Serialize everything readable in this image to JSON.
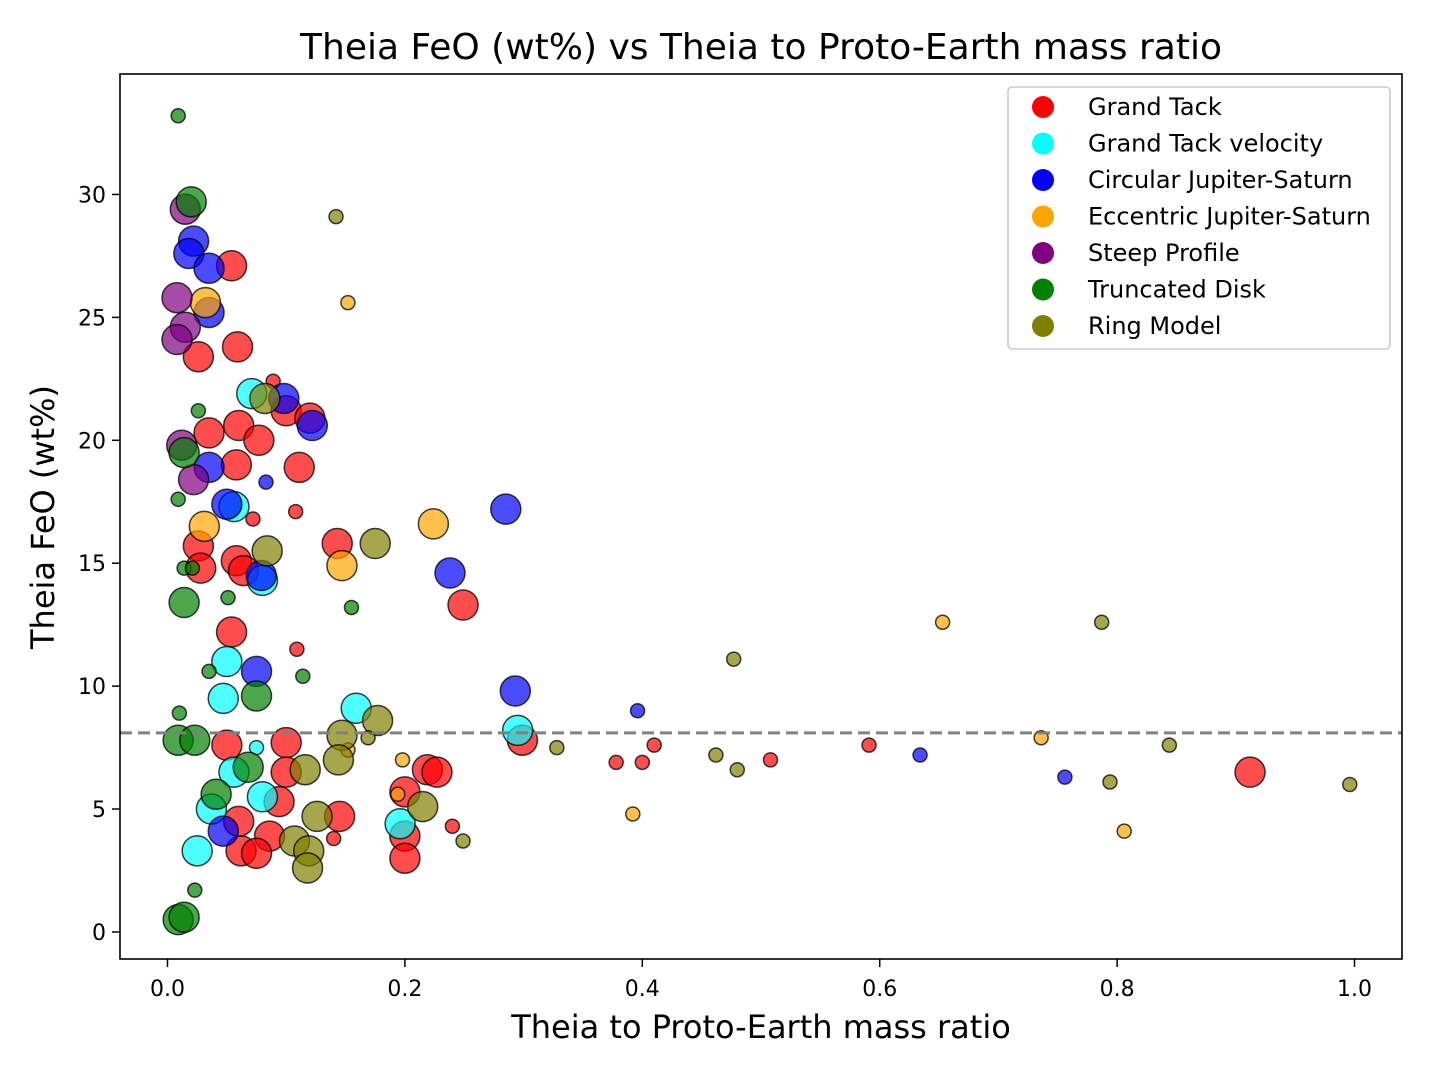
{
  "chart_data": {
    "type": "scatter",
    "title": "Theia FeO (wt%) vs Theia to Proto-Earth mass ratio",
    "xlabel": "Theia to Proto-Earth mass ratio",
    "ylabel": "Theia FeO (wt%)",
    "xlim": [
      -0.04,
      1.04
    ],
    "ylim": [
      -1.1,
      34.9
    ],
    "xticks": [
      0.0,
      0.2,
      0.4,
      0.6,
      0.8,
      1.0
    ],
    "xtick_labels": [
      "0.0",
      "0.2",
      "0.4",
      "0.6",
      "0.8",
      "1.0"
    ],
    "yticks": [
      0,
      5,
      10,
      15,
      20,
      25,
      30
    ],
    "ytick_labels": [
      "0",
      "5",
      "10",
      "15",
      "20",
      "25",
      "30"
    ],
    "reference_line": {
      "y": 8.1,
      "style": "dashed",
      "color": "#808080"
    },
    "legend_position": "top-right",
    "grid": false,
    "point_format": "[x, y, marker_size]",
    "series": [
      {
        "name": "Grand Tack",
        "color": "#ff0000",
        "points": [
          [
            0.054,
            27.1,
            225
          ],
          [
            0.059,
            23.8,
            225
          ],
          [
            0.026,
            23.4,
            225
          ],
          [
            0.035,
            20.3,
            225
          ],
          [
            0.06,
            20.6,
            225
          ],
          [
            0.077,
            20.0,
            225
          ],
          [
            0.1,
            21.2,
            225
          ],
          [
            0.111,
            18.9,
            225
          ],
          [
            0.058,
            19.0,
            225
          ],
          [
            0.026,
            15.7,
            225
          ],
          [
            0.028,
            14.8,
            225
          ],
          [
            0.058,
            15.1,
            225
          ],
          [
            0.064,
            14.7,
            225
          ],
          [
            0.054,
            12.2,
            225
          ],
          [
            0.143,
            15.8,
            225
          ],
          [
            0.249,
            13.3,
            225
          ],
          [
            0.12,
            20.9,
            225
          ],
          [
            0.072,
            16.8,
            49
          ],
          [
            0.108,
            17.1,
            49
          ],
          [
            0.109,
            11.5,
            49
          ],
          [
            0.05,
            7.6,
            225
          ],
          [
            0.1,
            7.7,
            225
          ],
          [
            0.1,
            6.5,
            225
          ],
          [
            0.094,
            5.3,
            225
          ],
          [
            0.086,
            3.9,
            225
          ],
          [
            0.062,
            3.3,
            225
          ],
          [
            0.075,
            3.2,
            225
          ],
          [
            0.145,
            4.7,
            225
          ],
          [
            0.2,
            5.7,
            225
          ],
          [
            0.2,
            3.9,
            225
          ],
          [
            0.2,
            3.0,
            225
          ],
          [
            0.219,
            6.6,
            225
          ],
          [
            0.227,
            6.5,
            225
          ],
          [
            0.299,
            7.8,
            225
          ],
          [
            0.378,
            6.9,
            49
          ],
          [
            0.4,
            6.9,
            49
          ],
          [
            0.41,
            7.6,
            49
          ],
          [
            0.508,
            7.0,
            49
          ],
          [
            0.591,
            7.6,
            49
          ],
          [
            0.912,
            6.5,
            225
          ],
          [
            0.24,
            4.3,
            49
          ],
          [
            0.089,
            22.4,
            49
          ],
          [
            0.14,
            3.8,
            49
          ],
          [
            0.06,
            4.5,
            225
          ]
        ]
      },
      {
        "name": "Grand Tack velocity",
        "color": "#00ffff",
        "points": [
          [
            0.071,
            21.9,
            225
          ],
          [
            0.056,
            17.3,
            225
          ],
          [
            0.08,
            14.3,
            225
          ],
          [
            0.05,
            11.0,
            225
          ],
          [
            0.047,
            9.5,
            225
          ],
          [
            0.159,
            9.1,
            225
          ],
          [
            0.295,
            8.2,
            225
          ],
          [
            0.056,
            6.5,
            225
          ],
          [
            0.08,
            5.5,
            225
          ],
          [
            0.037,
            5.0,
            225
          ],
          [
            0.025,
            3.3,
            225
          ],
          [
            0.196,
            4.4,
            225
          ],
          [
            0.075,
            7.5,
            49
          ]
        ]
      },
      {
        "name": "Circular Jupiter-Saturn",
        "color": "#0000ff",
        "points": [
          [
            0.022,
            28.1,
            225
          ],
          [
            0.018,
            27.6,
            225
          ],
          [
            0.035,
            27.0,
            225
          ],
          [
            0.035,
            25.2,
            225
          ],
          [
            0.098,
            21.7,
            225
          ],
          [
            0.122,
            20.6,
            225
          ],
          [
            0.035,
            18.9,
            225
          ],
          [
            0.05,
            17.4,
            225
          ],
          [
            0.285,
            17.2,
            225
          ],
          [
            0.238,
            14.6,
            225
          ],
          [
            0.079,
            14.5,
            225
          ],
          [
            0.075,
            10.6,
            225
          ],
          [
            0.293,
            9.8,
            225
          ],
          [
            0.047,
            4.1,
            225
          ],
          [
            0.083,
            18.3,
            49
          ],
          [
            0.396,
            9.0,
            49
          ],
          [
            0.634,
            7.2,
            49
          ],
          [
            0.756,
            6.3,
            49
          ]
        ]
      },
      {
        "name": "Eccentric Jupiter-Saturn",
        "color": "#ffa500",
        "points": [
          [
            0.032,
            25.6,
            225
          ],
          [
            0.031,
            16.5,
            225
          ],
          [
            0.224,
            16.6,
            225
          ],
          [
            0.147,
            14.9,
            225
          ],
          [
            0.152,
            25.6,
            49
          ],
          [
            0.653,
            12.6,
            49
          ],
          [
            0.736,
            7.9,
            49
          ],
          [
            0.392,
            4.8,
            49
          ],
          [
            0.806,
            4.1,
            49
          ],
          [
            0.194,
            5.6,
            49
          ],
          [
            0.198,
            7.0,
            49
          ],
          [
            0.152,
            7.4,
            49
          ]
        ]
      },
      {
        "name": "Steep Profile",
        "color": "#800080",
        "points": [
          [
            0.015,
            29.4,
            225
          ],
          [
            0.008,
            25.8,
            225
          ],
          [
            0.015,
            24.6,
            225
          ],
          [
            0.008,
            24.1,
            225
          ],
          [
            0.012,
            19.8,
            225
          ],
          [
            0.022,
            18.4,
            225
          ]
        ]
      },
      {
        "name": "Truncated Disk",
        "color": "#008000",
        "points": [
          [
            0.009,
            33.2,
            49
          ],
          [
            0.02,
            29.7,
            225
          ],
          [
            0.026,
            21.2,
            49
          ],
          [
            0.014,
            19.5,
            225
          ],
          [
            0.009,
            17.6,
            49
          ],
          [
            0.014,
            14.8,
            49
          ],
          [
            0.021,
            14.8,
            49
          ],
          [
            0.014,
            13.4,
            225
          ],
          [
            0.051,
            13.6,
            49
          ],
          [
            0.155,
            13.2,
            49
          ],
          [
            0.035,
            10.6,
            49
          ],
          [
            0.114,
            10.4,
            49
          ],
          [
            0.01,
            8.9,
            49
          ],
          [
            0.009,
            7.8,
            225
          ],
          [
            0.023,
            7.8,
            225
          ],
          [
            0.075,
            9.6,
            225
          ],
          [
            0.068,
            6.7,
            225
          ],
          [
            0.041,
            5.6,
            225
          ],
          [
            0.023,
            1.7,
            49
          ],
          [
            0.009,
            0.5,
            225
          ],
          [
            0.014,
            0.6,
            225
          ]
        ]
      },
      {
        "name": "Ring Model",
        "color": "#808000",
        "points": [
          [
            0.142,
            29.1,
            49
          ],
          [
            0.082,
            21.7,
            225
          ],
          [
            0.084,
            15.5,
            225
          ],
          [
            0.175,
            15.8,
            225
          ],
          [
            0.177,
            8.6,
            225
          ],
          [
            0.147,
            8.0,
            225
          ],
          [
            0.144,
            7.0,
            225
          ],
          [
            0.116,
            6.6,
            225
          ],
          [
            0.215,
            5.1,
            225
          ],
          [
            0.126,
            4.7,
            225
          ],
          [
            0.107,
            3.7,
            225
          ],
          [
            0.119,
            3.3,
            225
          ],
          [
            0.118,
            2.6,
            225
          ],
          [
            0.328,
            7.5,
            49
          ],
          [
            0.477,
            11.1,
            49
          ],
          [
            0.462,
            7.2,
            49
          ],
          [
            0.48,
            6.6,
            49
          ],
          [
            0.787,
            12.6,
            49
          ],
          [
            0.844,
            7.6,
            49
          ],
          [
            0.794,
            6.1,
            49
          ],
          [
            0.996,
            6.0,
            49
          ],
          [
            0.249,
            3.7,
            49
          ],
          [
            0.169,
            7.9,
            49
          ]
        ]
      }
    ]
  }
}
